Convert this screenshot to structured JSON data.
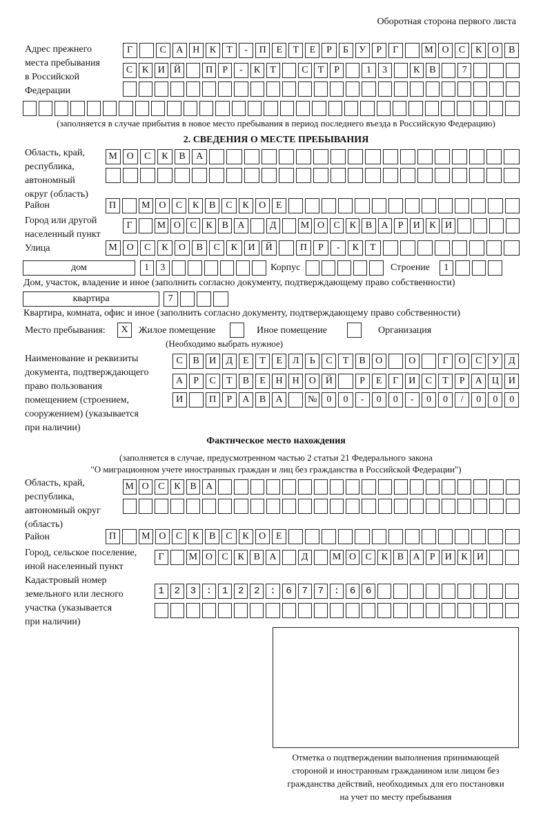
{
  "header": "Оборотная сторона первого листа",
  "prev_address": {
    "label": [
      "Адрес прежнего",
      "места пребывания",
      "в Российской",
      "Федерации"
    ],
    "rows": [
      "Г САНКТ-ПЕТЕРБУРГ МОСКОВ",
      "СКИЙ ПР-КТ СТР 13 КВ 7   ",
      "                         ",
      "                               "
    ],
    "note": "(заполняется в случае прибытия в новое место пребывания в период последнего въезда в Российскую Федерацию)"
  },
  "section2": {
    "title": "2. СВЕДЕНИЯ О МЕСТЕ ПРЕБЫВАНИЯ",
    "region_label": [
      "Область, край,",
      "республика,",
      "автономный",
      "округ (область)"
    ],
    "region_rows": [
      "МОСКВА                  ",
      "                        "
    ],
    "district_label": "Район",
    "district_row": "П МОСКВСКОЕ              ",
    "city_label": [
      "Город или другой",
      "населенный пункт"
    ],
    "city_row": "Г МОСКВА Д МОСКВАРИКИ    ",
    "street_label": "Улица",
    "street_row": "МОСКОВСКИЙ ПР-КТ        ",
    "house_type": "дом",
    "house_cells": "13      ",
    "korpus_label": "Корпус",
    "korpus_cells": "     ",
    "building_label": "Строение",
    "building_cells": "1   ",
    "house_note": "Дом, участок, владение и иное (заполнить согласно документу, подтверждающему право собственности)",
    "flat_type": "квартира",
    "flat_cells": "7   ",
    "flat_note": "Квартира, комната, офис и иное (заполнить согласно документу, подтверждающему право собственности)",
    "stay_label": "Место пребывания:",
    "stay_options": [
      {
        "label": "Жилое помещение",
        "mark": "X"
      },
      {
        "label": "Иное помещение",
        "mark": ""
      },
      {
        "label": "Организация",
        "mark": ""
      }
    ],
    "stay_note": "(Необходимо выбрать нужное)",
    "doc_label": [
      "Наименование и реквизиты",
      "документа, подтверждающего",
      "право пользования",
      "помещением (строением,",
      "сооружением) (указывается",
      "при наличии)"
    ],
    "doc_rows": [
      "СВИДЕТЕЛЬСТВО О ГОСУД",
      "АРСТВЕННОЙ РЕГИСТРАЦИ",
      "И ПРАВА №00-00-00/000"
    ]
  },
  "actual": {
    "title": "Фактическое место нахождения",
    "note": [
      "(заполняется в случае, предусмотренном частью 2 статьи 21 Федерального закона",
      "\"О миграционном учете иностранных граждан и лиц без гражданства в Российской Федерации\")"
    ],
    "region_label": [
      "Область, край,",
      "республика,",
      "автономный округ",
      "(область)"
    ],
    "region_rows": [
      "МОСКВА                   ",
      "                         "
    ],
    "district_label": "Район",
    "district_row": "П МОСКВСКОЕ              ",
    "city_label": [
      "Город, сельское поселение,",
      "иной населенный пункт"
    ],
    "city_row": "Г МОСКВА Д МОСКВАРИКИ  ",
    "cadastral_label": [
      "Кадастровый номер",
      "земельного или лесного",
      "участка (указывается",
      "при наличии)"
    ],
    "cadastral_rows": [
      "123:122:677:66         ",
      "                       "
    ]
  },
  "stamp_caption": [
    "Отметка о подтверждении выполнения принимающей",
    "стороной и иностранным гражданином или лицом без",
    "гражданства действий, необходимых для его постановки",
    "на учет по месту пребывания"
  ]
}
